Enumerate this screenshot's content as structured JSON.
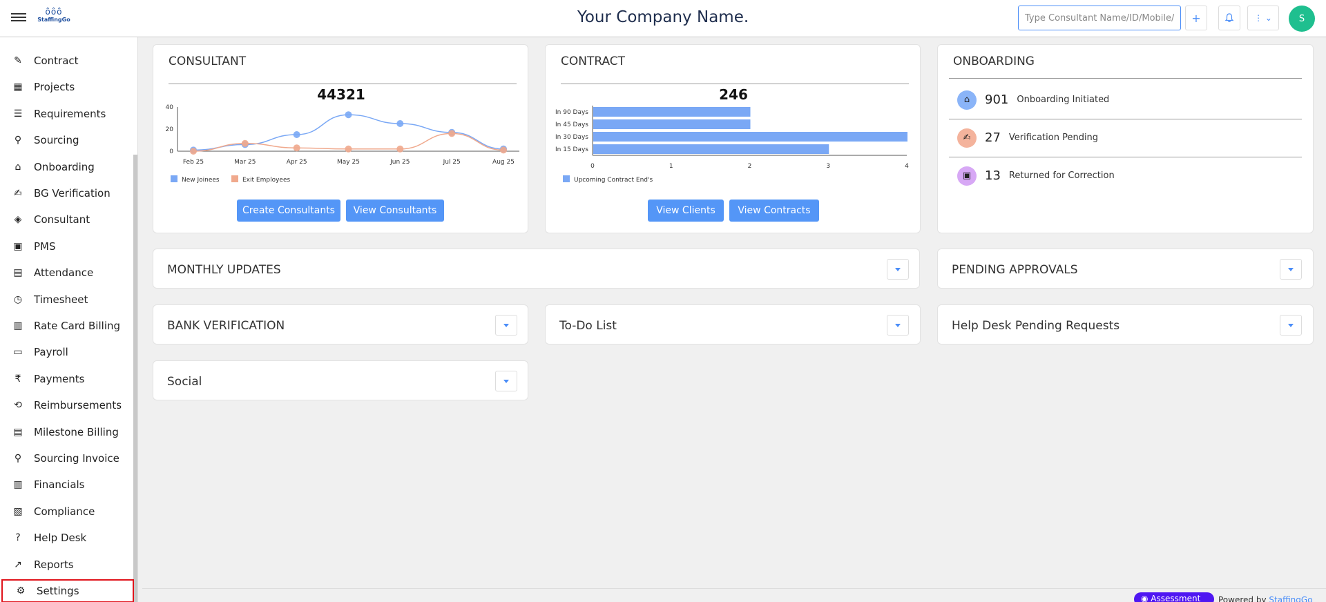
{
  "header": {
    "logo_text": "StaffingGo",
    "company_name": "Your Company Name.",
    "search_placeholder": "Type Consultant Name/ID/Mobile/...",
    "avatar_initial": "S"
  },
  "sidebar": {
    "items": [
      {
        "label": "Contract",
        "icon": "contract-icon",
        "glyph": "✎"
      },
      {
        "label": "Projects",
        "icon": "grid-icon",
        "glyph": "▦"
      },
      {
        "label": "Requirements",
        "icon": "checklist-icon",
        "glyph": "☰"
      },
      {
        "label": "Sourcing",
        "icon": "sourcing-icon",
        "glyph": "⚲"
      },
      {
        "label": "Onboarding",
        "icon": "onboarding-icon",
        "glyph": "⌂"
      },
      {
        "label": "BG Verification",
        "icon": "signature-icon",
        "glyph": "✍"
      },
      {
        "label": "Consultant",
        "icon": "tag-icon",
        "glyph": "◈"
      },
      {
        "label": "PMS",
        "icon": "pms-icon",
        "glyph": "▣"
      },
      {
        "label": "Attendance",
        "icon": "calendar-icon",
        "glyph": "▤"
      },
      {
        "label": "Timesheet",
        "icon": "clock-icon",
        "glyph": "◷"
      },
      {
        "label": "Rate Card Billing",
        "icon": "bill-icon",
        "glyph": "▥"
      },
      {
        "label": "Payroll",
        "icon": "cash-icon",
        "glyph": "▭"
      },
      {
        "label": "Payments",
        "icon": "rupee-icon",
        "glyph": "₹"
      },
      {
        "label": "Reimbursements",
        "icon": "refund-icon",
        "glyph": "⟲"
      },
      {
        "label": "Milestone Billing",
        "icon": "receipt-icon",
        "glyph": "▤"
      },
      {
        "label": "Sourcing Invoice",
        "icon": "invoice-search-icon",
        "glyph": "⚲"
      },
      {
        "label": "Financials",
        "icon": "bar-chart-icon",
        "glyph": "▥"
      },
      {
        "label": "Compliance",
        "icon": "compliance-icon",
        "glyph": "▧"
      },
      {
        "label": "Help Desk",
        "icon": "help-icon",
        "glyph": "?"
      },
      {
        "label": "Reports",
        "icon": "reports-icon",
        "glyph": "↗"
      },
      {
        "label": "Settings",
        "icon": "gear-icon",
        "glyph": "⚙"
      }
    ]
  },
  "consultant_card": {
    "title": "CONSULTANT",
    "total": "44321",
    "create_button": "Create Consultants",
    "view_button": "View Consultants"
  },
  "contract_card": {
    "title": "CONTRACT",
    "total": "246",
    "view_clients_button": "View Clients",
    "view_contracts_button": "View Contracts"
  },
  "onboarding_card": {
    "title": "ONBOARDING",
    "rows": [
      {
        "count": "901",
        "label": "Onboarding Initiated",
        "icon": "onboarding-icon",
        "color": "#8ab4f8",
        "glyph": "⌂"
      },
      {
        "count": "27",
        "label": "Verification Pending",
        "icon": "signature-icon",
        "color": "#f4b39c",
        "glyph": "✍"
      },
      {
        "count": "13",
        "label": "Returned for Correction",
        "icon": "return-icon",
        "color": "#d7a8f5",
        "glyph": "▣"
      }
    ]
  },
  "panels": {
    "monthly_updates": "MONTHLY UPDATES",
    "pending_approvals": "PENDING APPROVALS",
    "bank_verification": "BANK VERIFICATION",
    "todo_list": "To-Do List",
    "help_desk": "Help Desk Pending Requests",
    "social": "Social"
  },
  "footer": {
    "assist_label": "Assessment",
    "powered_prefix": "Powered by",
    "powered_link": "StaffingGo"
  },
  "colors": {
    "accent": "#5496f7",
    "series_new": "#7aa8f5",
    "series_exit": "#f0a98d",
    "avatar": "#1fbf8f",
    "highlight": "#e0131b"
  },
  "chart_data": [
    {
      "type": "line",
      "categories": [
        "Feb 25",
        "Mar 25",
        "Apr 25",
        "May 25",
        "Jun 25",
        "Jul 25",
        "Aug 25"
      ],
      "series": [
        {
          "name": "New Joinees",
          "values": [
            1,
            6,
            15,
            33,
            25,
            17,
            2
          ]
        },
        {
          "name": "Exit Employees",
          "values": [
            0,
            7,
            3,
            2,
            2,
            16,
            1
          ]
        }
      ],
      "ylim": [
        0,
        40
      ],
      "yticks": [
        0,
        20,
        40
      ],
      "legend": "bottom-left"
    },
    {
      "type": "bar",
      "orientation": "horizontal",
      "categories": [
        "In 90 Days",
        "In 45 Days",
        "In 30 Days",
        "In 15 Days"
      ],
      "series": [
        {
          "name": "Upcoming Contract End's",
          "values": [
            2,
            2,
            4,
            3
          ]
        }
      ],
      "xlim": [
        0,
        4
      ],
      "xticks": [
        0,
        1,
        2,
        3,
        4
      ],
      "legend": "bottom-left"
    }
  ]
}
